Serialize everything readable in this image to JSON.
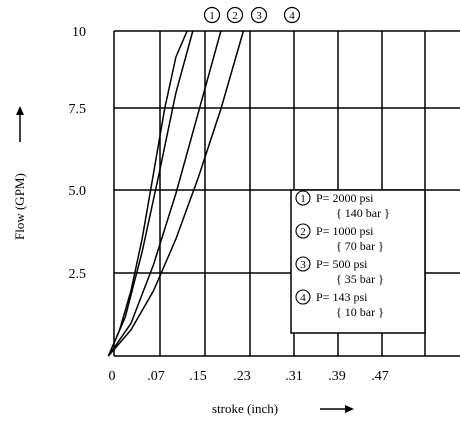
{
  "chart_data": {
    "type": "line",
    "xlabel": "stroke (inch)",
    "ylabel": "Flow (GPM)",
    "x_ticks": [
      "0",
      ".07",
      ".15",
      ".23",
      ".31",
      ".39",
      ".47"
    ],
    "y_ticks": [
      "2.5",
      "5.0",
      "7.5",
      "10"
    ],
    "xlim": [
      0,
      0.55
    ],
    "ylim": [
      0,
      10
    ],
    "grid": true,
    "legend_position": "lower-right",
    "series": [
      {
        "marker": "1",
        "name": "P= 2000 psi",
        "sub": "{ 140 bar }",
        "x": [
          0.06,
          0.08,
          0.1,
          0.12,
          0.14,
          0.16,
          0.18,
          0.2
        ],
        "y": [
          0,
          0.8,
          2.0,
          3.6,
          5.6,
          7.6,
          9.2,
          10
        ]
      },
      {
        "marker": "2",
        "name": "P= 1000 psi",
        "sub": "{ 70 bar }",
        "x": [
          0.06,
          0.09,
          0.12,
          0.15,
          0.18,
          0.21
        ],
        "y": [
          0,
          1.2,
          3.2,
          5.6,
          8.1,
          10
        ]
      },
      {
        "marker": "3",
        "name": "P= 500 psi",
        "sub": "{ 35 bar }",
        "x": [
          0.06,
          0.1,
          0.14,
          0.18,
          0.22,
          0.26
        ],
        "y": [
          0,
          1.0,
          2.8,
          5.0,
          7.5,
          10
        ]
      },
      {
        "marker": "4",
        "name": "P= 143 psi",
        "sub": "{ 10 bar }",
        "x": [
          0.06,
          0.1,
          0.14,
          0.18,
          0.22,
          0.26,
          0.3
        ],
        "y": [
          0,
          0.8,
          2.0,
          3.6,
          5.5,
          7.6,
          10
        ]
      }
    ]
  }
}
